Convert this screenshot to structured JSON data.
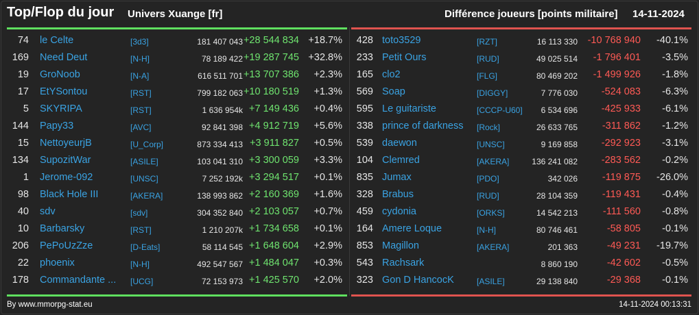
{
  "header": {
    "title": "Top/Flop du jour",
    "subtitle": "Univers Xuange [fr]",
    "right_title": "Différence joueurs [points militaire]",
    "date": "14-11-2024"
  },
  "colors": {
    "top_bar": "#5fe05f",
    "flop_bar": "#e0534f",
    "positive": "#6fe46f",
    "negative": "#ff5a55",
    "link": "#3aa3e3"
  },
  "top": [
    {
      "rank": "74",
      "name": "le Celte",
      "ally": "[3d3]",
      "points": "181 407 043",
      "diff": "+28 544 834",
      "pct": "+18.7%"
    },
    {
      "rank": "169",
      "name": "Need Deut",
      "ally": "[N-H]",
      "points": "78 189 422",
      "diff": "+19 287 745",
      "pct": "+32.8%"
    },
    {
      "rank": "19",
      "name": "GroNoob",
      "ally": "[N-A]",
      "points": "616 511 701",
      "diff": "+13 707 386",
      "pct": "+2.3%"
    },
    {
      "rank": "17",
      "name": "EtYSontou",
      "ally": "[RST]",
      "points": "799 182 063",
      "diff": "+10 180 519",
      "pct": "+1.3%"
    },
    {
      "rank": "5",
      "name": "SKYRIPA",
      "ally": "[RST]",
      "points": "1 636 954k",
      "diff": "+7 149 436",
      "pct": "+0.4%"
    },
    {
      "rank": "144",
      "name": "Papy33",
      "ally": "[AVC]",
      "points": "92 841 398",
      "diff": "+4 912 719",
      "pct": "+5.6%"
    },
    {
      "rank": "15",
      "name": "NettoyeurjB",
      "ally": "[U_Corp]",
      "points": "873 334 413",
      "diff": "+3 911 827",
      "pct": "+0.5%"
    },
    {
      "rank": "134",
      "name": "SupozitWar",
      "ally": "[ASILE]",
      "points": "103 041 310",
      "diff": "+3 300 059",
      "pct": "+3.3%"
    },
    {
      "rank": "1",
      "name": "Jerome-092",
      "ally": "[UNSC]",
      "points": "7 252 192k",
      "diff": "+3 294 517",
      "pct": "+0.1%"
    },
    {
      "rank": "98",
      "name": "Black Hole III",
      "ally": "[AKERA]",
      "points": "138 993 862",
      "diff": "+2 160 369",
      "pct": "+1.6%"
    },
    {
      "rank": "40",
      "name": "sdv",
      "ally": "[sdv]",
      "points": "304 352 840",
      "diff": "+2 103 057",
      "pct": "+0.7%"
    },
    {
      "rank": "10",
      "name": "Barbarsky",
      "ally": "[RST]",
      "points": "1 210 207k",
      "diff": "+1 734 658",
      "pct": "+0.1%"
    },
    {
      "rank": "206",
      "name": "PePoUzZze",
      "ally": "[D-Eats]",
      "points": "58 114 545",
      "diff": "+1 648 604",
      "pct": "+2.9%"
    },
    {
      "rank": "22",
      "name": "phoenix",
      "ally": "[N-H]",
      "points": "492 547 567",
      "diff": "+1 484 047",
      "pct": "+0.3%"
    },
    {
      "rank": "178",
      "name": "Commandante ...",
      "ally": "[UCG]",
      "points": "72 153 973",
      "diff": "+1 425 570",
      "pct": "+2.0%"
    }
  ],
  "flop": [
    {
      "rank": "428",
      "name": "toto3529",
      "ally": "[RZT]",
      "points": "16 113 330",
      "diff": "-10 768 940",
      "pct": "-40.1%"
    },
    {
      "rank": "233",
      "name": "Petit Ours",
      "ally": "[RUD]",
      "points": "49 025 514",
      "diff": "-1 796 401",
      "pct": "-3.5%"
    },
    {
      "rank": "165",
      "name": "clo2",
      "ally": "[FLG]",
      "points": "80 469 202",
      "diff": "-1 499 926",
      "pct": "-1.8%"
    },
    {
      "rank": "569",
      "name": "Soap",
      "ally": "[DIGGY]",
      "points": "7 776 030",
      "diff": "-524 083",
      "pct": "-6.3%"
    },
    {
      "rank": "595",
      "name": "Le guitariste",
      "ally": "[CCCP-U60]",
      "points": "6 534 696",
      "diff": "-425 933",
      "pct": "-6.1%"
    },
    {
      "rank": "338",
      "name": "prince of darkness",
      "ally": "[Rock]",
      "points": "26 633 765",
      "diff": "-311 862",
      "pct": "-1.2%"
    },
    {
      "rank": "539",
      "name": "daewon",
      "ally": "[UNSC]",
      "points": "9 169 858",
      "diff": "-292 923",
      "pct": "-3.1%"
    },
    {
      "rank": "104",
      "name": "Clemred",
      "ally": "[AKERA]",
      "points": "136 241 082",
      "diff": "-283 562",
      "pct": "-0.2%"
    },
    {
      "rank": "835",
      "name": "Jumax",
      "ally": "[PDO]",
      "points": "342 026",
      "diff": "-119 875",
      "pct": "-26.0%"
    },
    {
      "rank": "328",
      "name": "Brabus",
      "ally": "[RUD]",
      "points": "28 104 359",
      "diff": "-119 431",
      "pct": "-0.4%"
    },
    {
      "rank": "459",
      "name": "cydonia",
      "ally": "[ORKS]",
      "points": "14 542 213",
      "diff": "-111 560",
      "pct": "-0.8%"
    },
    {
      "rank": "164",
      "name": "Amere Loque",
      "ally": "[N-H]",
      "points": "80 746 461",
      "diff": "-58 805",
      "pct": "-0.1%"
    },
    {
      "rank": "853",
      "name": "Magillon",
      "ally": "[AKERA]",
      "points": "201 363",
      "diff": "-49 231",
      "pct": "-19.7%"
    },
    {
      "rank": "543",
      "name": "Rachsark",
      "ally": "",
      "points": "8 860 190",
      "diff": "-42 602",
      "pct": "-0.5%"
    },
    {
      "rank": "323",
      "name": "Gon D HancocK",
      "ally": "[ASILE]",
      "points": "29 138 840",
      "diff": "-29 368",
      "pct": "-0.1%"
    }
  ],
  "footer": {
    "credit": "By www.mmorpg-stat.eu",
    "timestamp": "14-11-2024 00:13:31"
  }
}
